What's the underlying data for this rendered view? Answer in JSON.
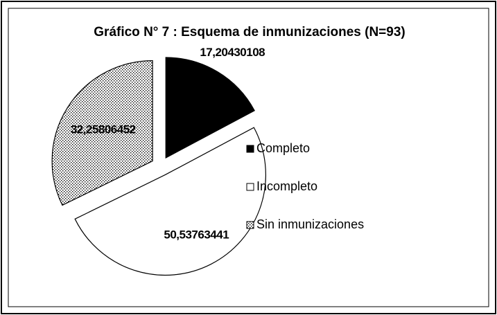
{
  "chart_data": {
    "type": "pie",
    "title": "Gráfico N° 7 : Esquema de inmunizaciones (N=93)",
    "categories": [
      "Completo",
      "Incompleto",
      "Sin inmunizaciones"
    ],
    "values": [
      17.20430108,
      50.53763441,
      32.25806452
    ],
    "value_labels": [
      "17,20430108",
      "50,53763441",
      "32,25806452"
    ],
    "colors": [
      "#000000",
      "#ffffff",
      "#ffffff"
    ],
    "fills": [
      "solid",
      "solid",
      "dotted"
    ],
    "legend": "right"
  }
}
